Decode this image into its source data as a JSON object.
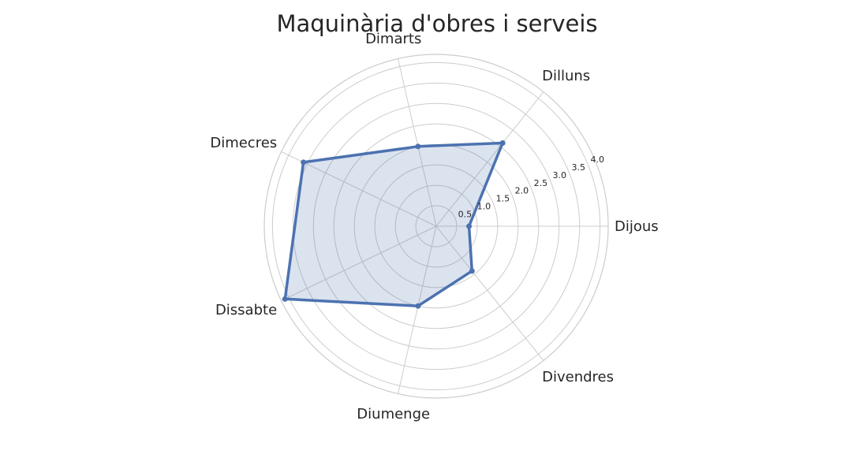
{
  "chart_data": {
    "type": "radar",
    "title": "Maquinària d'obres i serveis",
    "categories": [
      "Dijous",
      "Dilluns",
      "Dimarts",
      "Dimecres",
      "Dissabte",
      "Diumenge",
      "Divendres"
    ],
    "series": [
      {
        "values": [
          0.8,
          2.6,
          2.0,
          3.6,
          4.1,
          2.0,
          1.4
        ]
      }
    ],
    "r_ticks": [
      "0.5",
      "1.0",
      "1.5",
      "2.0",
      "2.5",
      "3.0",
      "3.5",
      "4.0"
    ],
    "r_tick_values": [
      0.5,
      1.0,
      1.5,
      2.0,
      2.5,
      3.0,
      3.5,
      4.0
    ],
    "rlim": [
      0,
      4.2
    ],
    "grid": true,
    "colors": {
      "line": "#4c72b0",
      "fill": "#4c72b0"
    }
  }
}
